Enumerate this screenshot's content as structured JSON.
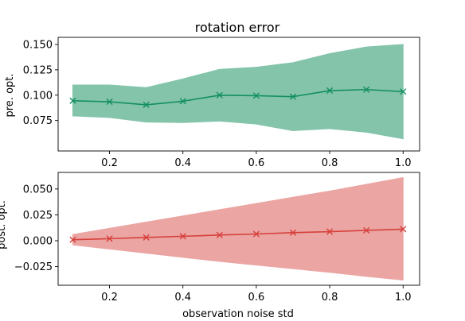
{
  "chart_data": [
    {
      "type": "line",
      "title": "rotation error",
      "xlabel": "",
      "ylabel": "pre. opt.",
      "x": [
        0.1,
        0.2,
        0.3,
        0.4,
        0.5,
        0.6,
        0.7,
        0.8,
        0.9,
        1.0
      ],
      "xlim": [
        0.06,
        1.045
      ],
      "ylim": [
        0.045,
        0.157
      ],
      "xticks": [
        0.2,
        0.4,
        0.6,
        0.8,
        1.0
      ],
      "xtick_labels": [
        "0.2",
        "0.4",
        "0.6",
        "0.8",
        "1.0"
      ],
      "yticks": [
        0.075,
        0.1,
        0.125,
        0.15
      ],
      "ytick_labels": [
        "0.075",
        "0.100",
        "0.125",
        "0.150"
      ],
      "color": "#148f63",
      "fill_color": "#83c4ab",
      "marker": "x",
      "series": [
        {
          "values": [
            0.0945,
            0.0935,
            0.0905,
            0.094,
            0.1,
            0.0995,
            0.0985,
            0.1045,
            0.1055,
            0.1035
          ],
          "upper": [
            0.11,
            0.11,
            0.1075,
            0.116,
            0.1255,
            0.1275,
            0.132,
            0.141,
            0.1475,
            0.15
          ],
          "lower": [
            0.0795,
            0.078,
            0.0735,
            0.073,
            0.0745,
            0.0715,
            0.065,
            0.067,
            0.0635,
            0.057
          ]
        }
      ]
    },
    {
      "type": "line",
      "title": "",
      "xlabel": "observation noise std",
      "ylabel": "post. opt.",
      "x": [
        0.1,
        0.2,
        0.3,
        0.4,
        0.5,
        0.6,
        0.7,
        0.8,
        0.9,
        1.0
      ],
      "xlim": [
        0.06,
        1.045
      ],
      "ylim": [
        -0.043,
        0.066
      ],
      "xticks": [
        0.2,
        0.4,
        0.6,
        0.8,
        1.0
      ],
      "xtick_labels": [
        "0.2",
        "0.4",
        "0.6",
        "0.8",
        "1.0"
      ],
      "yticks": [
        -0.025,
        0.0,
        0.025,
        0.05
      ],
      "ytick_labels": [
        "−0.025",
        "0.000",
        "0.025",
        "0.050"
      ],
      "color": "#d6403b",
      "fill_color": "#eba5a3",
      "marker": "x",
      "series": [
        {
          "values": [
            0.001,
            0.002,
            0.0032,
            0.0043,
            0.0055,
            0.0065,
            0.0078,
            0.0088,
            0.01,
            0.0112
          ],
          "upper": [
            0.006,
            0.012,
            0.018,
            0.024,
            0.03,
            0.036,
            0.042,
            0.048,
            0.0545,
            0.061
          ],
          "lower": [
            -0.004,
            -0.008,
            -0.012,
            -0.016,
            -0.02,
            -0.0235,
            -0.027,
            -0.0305,
            -0.0345,
            -0.038
          ]
        }
      ]
    }
  ]
}
